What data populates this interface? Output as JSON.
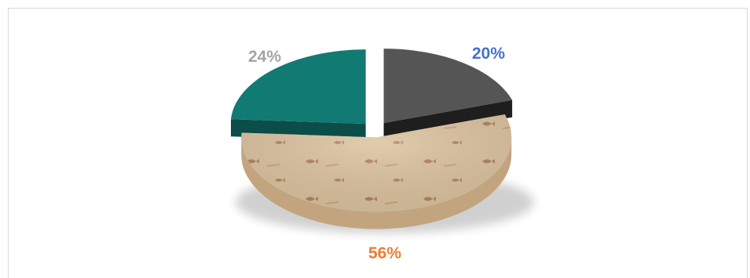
{
  "chart_data": {
    "type": "pie",
    "style": "3d-exploded",
    "title": "",
    "legend": "none",
    "slices": [
      {
        "label": "20%",
        "value": 20,
        "side_color": "#1e1e1e",
        "top_color": "#555555",
        "label_color": "#4472c4"
      },
      {
        "label": "56%",
        "value": 56,
        "side_color": "#c2a47f",
        "top_color": "#dfc6a3",
        "label_color": "#ed7d31",
        "texture": "fish-pattern"
      },
      {
        "label": "24%",
        "value": 24,
        "side_color": "#0b4d49",
        "top_color": "#117a72",
        "label_color": "#a5a5a5"
      }
    ]
  }
}
